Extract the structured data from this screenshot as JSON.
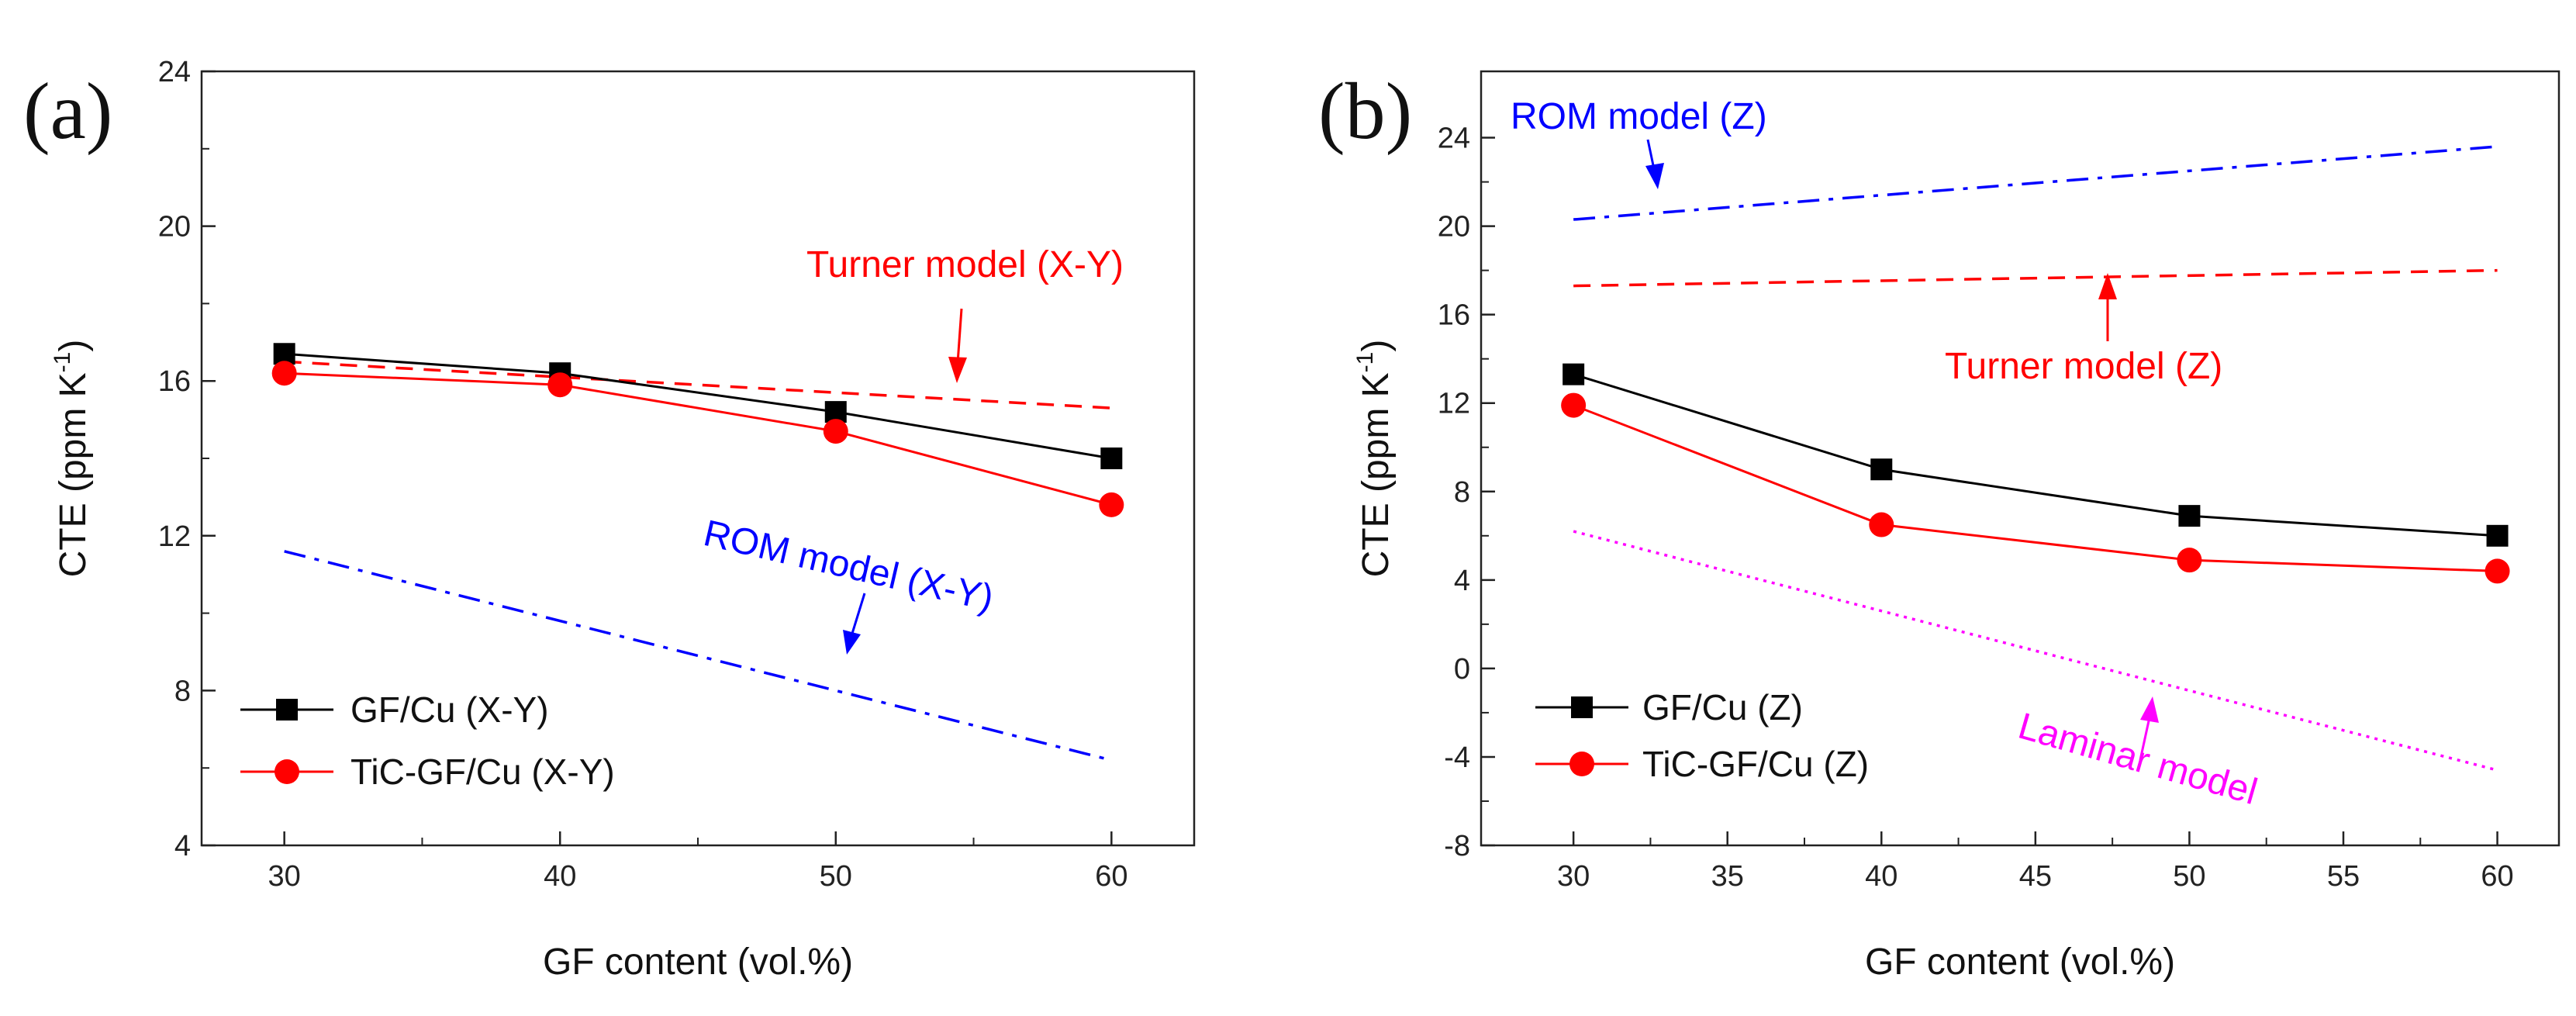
{
  "chart_data": [
    {
      "panel": "(a)",
      "type": "line",
      "xlabel": "GF content (vol.%)",
      "ylabel": "CTE (ppm K",
      "ylabel_sup": "-1",
      "ylabel_close": ")",
      "xlim": [
        27,
        63
      ],
      "ylim": [
        4,
        24
      ],
      "x_ticks": [
        30,
        40,
        50,
        60
      ],
      "y_ticks": [
        4,
        8,
        12,
        16,
        20,
        24
      ],
      "series": [
        {
          "name": "GF/Cu (X-Y)",
          "marker": "square",
          "color": "#000000",
          "x": [
            30,
            40,
            50,
            60
          ],
          "values": [
            16.7,
            16.2,
            15.2,
            14.0
          ]
        },
        {
          "name": "TiC-GF/Cu (X-Y)",
          "marker": "circle",
          "color": "#ff0000",
          "x": [
            30,
            40,
            50,
            60
          ],
          "values": [
            16.2,
            15.9,
            14.7,
            12.8
          ]
        }
      ],
      "models": [
        {
          "name": "Turner model (X-Y)",
          "style": "dash",
          "color": "#ff0000",
          "x": [
            30,
            60
          ],
          "values": [
            16.5,
            15.3
          ]
        },
        {
          "name": "ROM model (X-Y)",
          "style": "dashdot",
          "color": "#0000ff",
          "x": [
            30,
            60
          ],
          "values": [
            11.6,
            6.2
          ]
        }
      ],
      "annotations": [
        {
          "text": "Turner model (X-Y)",
          "color": "#ff0000"
        },
        {
          "text": "ROM model (X-Y)",
          "color": "#0000ff"
        }
      ],
      "legend": "bottom-left"
    },
    {
      "panel": "(b)",
      "type": "line",
      "xlabel": "GF content (vol.%)",
      "ylabel": "CTE (ppm K",
      "ylabel_sup": "-1",
      "ylabel_close": ")",
      "xlim": [
        27,
        62
      ],
      "ylim": [
        -8,
        27
      ],
      "x_ticks": [
        30,
        35,
        40,
        45,
        50,
        55,
        60
      ],
      "y_ticks": [
        -8,
        -4,
        0,
        4,
        8,
        12,
        16,
        20,
        24
      ],
      "series": [
        {
          "name": "GF/Cu (Z)",
          "marker": "square",
          "color": "#000000",
          "x": [
            30,
            40,
            50,
            60
          ],
          "values": [
            13.3,
            9.0,
            6.9,
            6.0
          ]
        },
        {
          "name": "TiC-GF/Cu (Z)",
          "marker": "circle",
          "color": "#ff0000",
          "x": [
            30,
            40,
            50,
            60
          ],
          "values": [
            11.9,
            6.5,
            4.9,
            4.4
          ]
        }
      ],
      "models": [
        {
          "name": "ROM model (Z)",
          "style": "dashdot",
          "color": "#0000ff",
          "x": [
            30,
            60
          ],
          "values": [
            20.3,
            23.6
          ]
        },
        {
          "name": "Turner model (Z)",
          "style": "dash",
          "color": "#ff0000",
          "x": [
            30,
            60
          ],
          "values": [
            17.3,
            18.0
          ]
        },
        {
          "name": "Laminar model",
          "style": "dot",
          "color": "#ff00ff",
          "x": [
            30,
            60
          ],
          "values": [
            6.2,
            -4.6
          ]
        }
      ],
      "annotations": [
        {
          "text": "ROM model (Z)",
          "color": "#0000ff"
        },
        {
          "text": "Turner model (Z)",
          "color": "#ff0000"
        },
        {
          "text": "Laminar model",
          "color": "#ff00ff"
        }
      ],
      "legend": "bottom-left"
    }
  ]
}
